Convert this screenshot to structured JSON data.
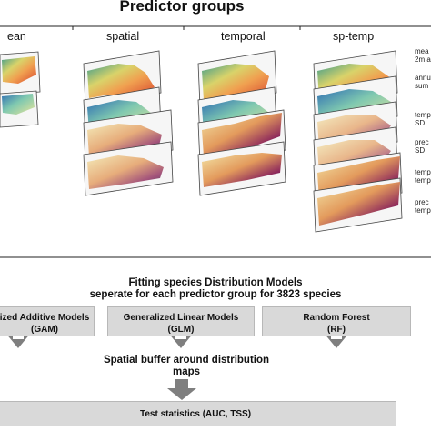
{
  "title": "Predictor groups",
  "columns": [
    {
      "label": "ean"
    },
    {
      "label": "spatial"
    },
    {
      "label": "temporal"
    },
    {
      "label": "sp-temp"
    }
  ],
  "side_labels": [
    {
      "lines": [
        "mea",
        "2m a"
      ]
    },
    {
      "lines": [
        "annu",
        "sum"
      ]
    },
    {
      "lines": [
        "temp",
        "SD"
      ]
    },
    {
      "lines": [
        "prec",
        "SD"
      ]
    },
    {
      "lines": [
        "temp",
        "temp"
      ]
    },
    {
      "lines": [
        "prec",
        "temp"
      ]
    }
  ],
  "fitting": {
    "line1": "Fitting species Distribution Models",
    "line2": "seperate for each predictor group for 3823 species"
  },
  "models": [
    {
      "name": "ized Additive Models",
      "abbr": "(GAM)"
    },
    {
      "name": "Generalized Linear Models",
      "abbr": "(GLM)"
    },
    {
      "name": "Random Forest",
      "abbr": "(RF)"
    }
  ],
  "buffer": {
    "line1": "Spatial buffer around distribution",
    "line2": "maps"
  },
  "test": {
    "label": "Test statistics (AUC, TSS)"
  },
  "colors": {
    "box_fill": "#d9d9d9",
    "arrow": "#7f7f7f",
    "map_warm": "#e0603a",
    "map_cool": "#3f8fbf",
    "map_dark": "#2a0b3a"
  }
}
